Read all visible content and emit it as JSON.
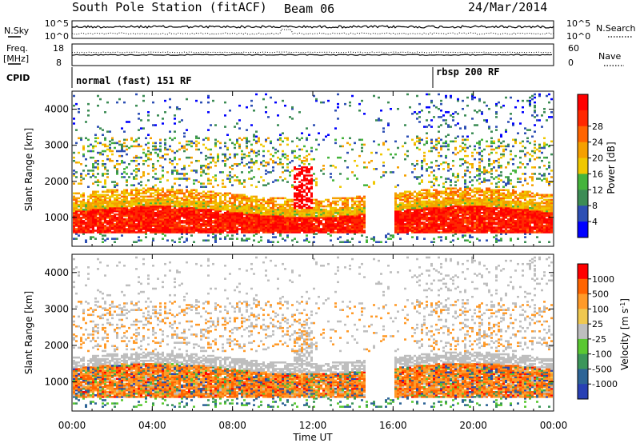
{
  "header": {
    "station": "South Pole Station (fitACF)",
    "beam": "Beam 06",
    "date": "24/Mar/2014"
  },
  "top_panel": {
    "left_label": "N.Sky",
    "left_ticks": [
      "10^5",
      "10^0"
    ],
    "right_ticks": [
      "10^5",
      "10^0"
    ],
    "right_label": "N.Search"
  },
  "freq_panel": {
    "left_label_line1": "Freq.",
    "left_label_line2": "[MHz]",
    "left_ticks": [
      "18",
      "8"
    ],
    "right_ticks": [
      "60",
      "0"
    ],
    "right_label": "Nave"
  },
  "cpid_panel": {
    "label": "CPID",
    "segments": [
      {
        "start_hour": 0,
        "text": "normal (fast) 151 RF"
      },
      {
        "start_hour": 18,
        "text": "rbsp 200 RF"
      }
    ]
  },
  "x_axis": {
    "label": "Time UT",
    "ticks": [
      "00:00",
      "04:00",
      "08:00",
      "12:00",
      "16:00",
      "20:00",
      "00:00"
    ],
    "range_hours": [
      0,
      24
    ]
  },
  "colors": {
    "power": [
      "#0000ff",
      "#2d4fb4",
      "#3c8c55",
      "#45b43c",
      "#f0c800",
      "#f5a000",
      "#ff6400",
      "#ff2800",
      "#ff0000"
    ],
    "velocity": [
      "#ff0000",
      "#ff6400",
      "#ff9a28",
      "#f0c850",
      "#bebebe",
      "#5ac832",
      "#3c965a",
      "#2d6496",
      "#2840b4"
    ]
  },
  "chart_data": [
    {
      "type": "heatmap",
      "ylabel": "Slant Range [km]",
      "ylim": [
        200,
        4500
      ],
      "y_ticks": [
        "1000",
        "2000",
        "3000",
        "4000"
      ],
      "colorbar_label": "Power [dB]",
      "colorbar_ticks": [
        "4",
        "8",
        "12",
        "16",
        "20",
        "24",
        "28"
      ],
      "colorbar_range": [
        0,
        30
      ]
    },
    {
      "type": "heatmap",
      "ylabel": "Slant Range [km]",
      "ylim": [
        200,
        4500
      ],
      "y_ticks": [
        "1000",
        "2000",
        "3000",
        "4000"
      ],
      "colorbar_label": "Velocity [m s^-1]",
      "colorbar_ticks": [
        "1000",
        "500",
        "100",
        "25",
        "-25",
        "-100",
        "-500",
        "-1000"
      ]
    }
  ]
}
